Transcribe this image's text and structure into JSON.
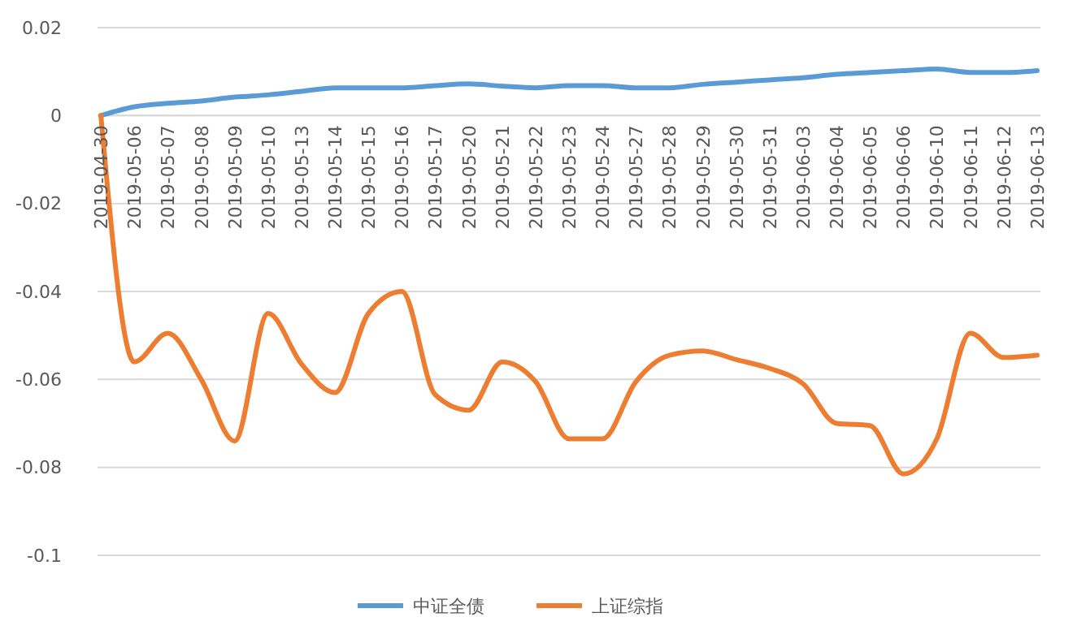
{
  "chart_data": {
    "type": "line",
    "categories": [
      "2019-04-30",
      "2019-05-06",
      "2019-05-07",
      "2019-05-08",
      "2019-05-09",
      "2019-05-10",
      "2019-05-13",
      "2019-05-14",
      "2019-05-15",
      "2019-05-16",
      "2019-05-17",
      "2019-05-20",
      "2019-05-21",
      "2019-05-22",
      "2019-05-23",
      "2019-05-24",
      "2019-05-27",
      "2019-05-28",
      "2019-05-29",
      "2019-05-30",
      "2019-05-31",
      "2019-06-03",
      "2019-06-04",
      "2019-06-05",
      "2019-06-06",
      "2019-06-10",
      "2019-06-11",
      "2019-06-12",
      "2019-06-13"
    ],
    "series": [
      {
        "name": "中证全债",
        "color": "#5b9bd5",
        "values": [
          0,
          0.002,
          0.0028,
          0.0033,
          0.0042,
          0.0047,
          0.0055,
          0.0063,
          0.0063,
          0.0063,
          0.0068,
          0.0072,
          0.0067,
          0.0063,
          0.0068,
          0.0068,
          0.0063,
          0.0063,
          0.0071,
          0.0076,
          0.0081,
          0.0086,
          0.0094,
          0.0098,
          0.0102,
          0.0106,
          0.0098,
          0.0098,
          0.0102
        ]
      },
      {
        "name": "上证综指",
        "color": "#ed7d31",
        "values": [
          0,
          -0.056,
          -0.0495,
          -0.06,
          -0.074,
          -0.045,
          -0.0565,
          -0.063,
          -0.045,
          -0.04,
          -0.0635,
          -0.067,
          -0.056,
          -0.0605,
          -0.0735,
          -0.0735,
          -0.0605,
          -0.0545,
          -0.0535,
          -0.0555,
          -0.0575,
          -0.061,
          -0.07,
          -0.0705,
          -0.0815,
          -0.0735,
          -0.0495,
          -0.055,
          -0.0545
        ]
      }
    ],
    "ylim": [
      -0.1,
      0.02
    ],
    "yticks": [
      -0.1,
      -0.08,
      -0.06,
      -0.04,
      -0.02,
      0,
      0.02
    ],
    "grid": "y",
    "legend": "bottom",
    "marker": "none",
    "line_style": "solid"
  }
}
